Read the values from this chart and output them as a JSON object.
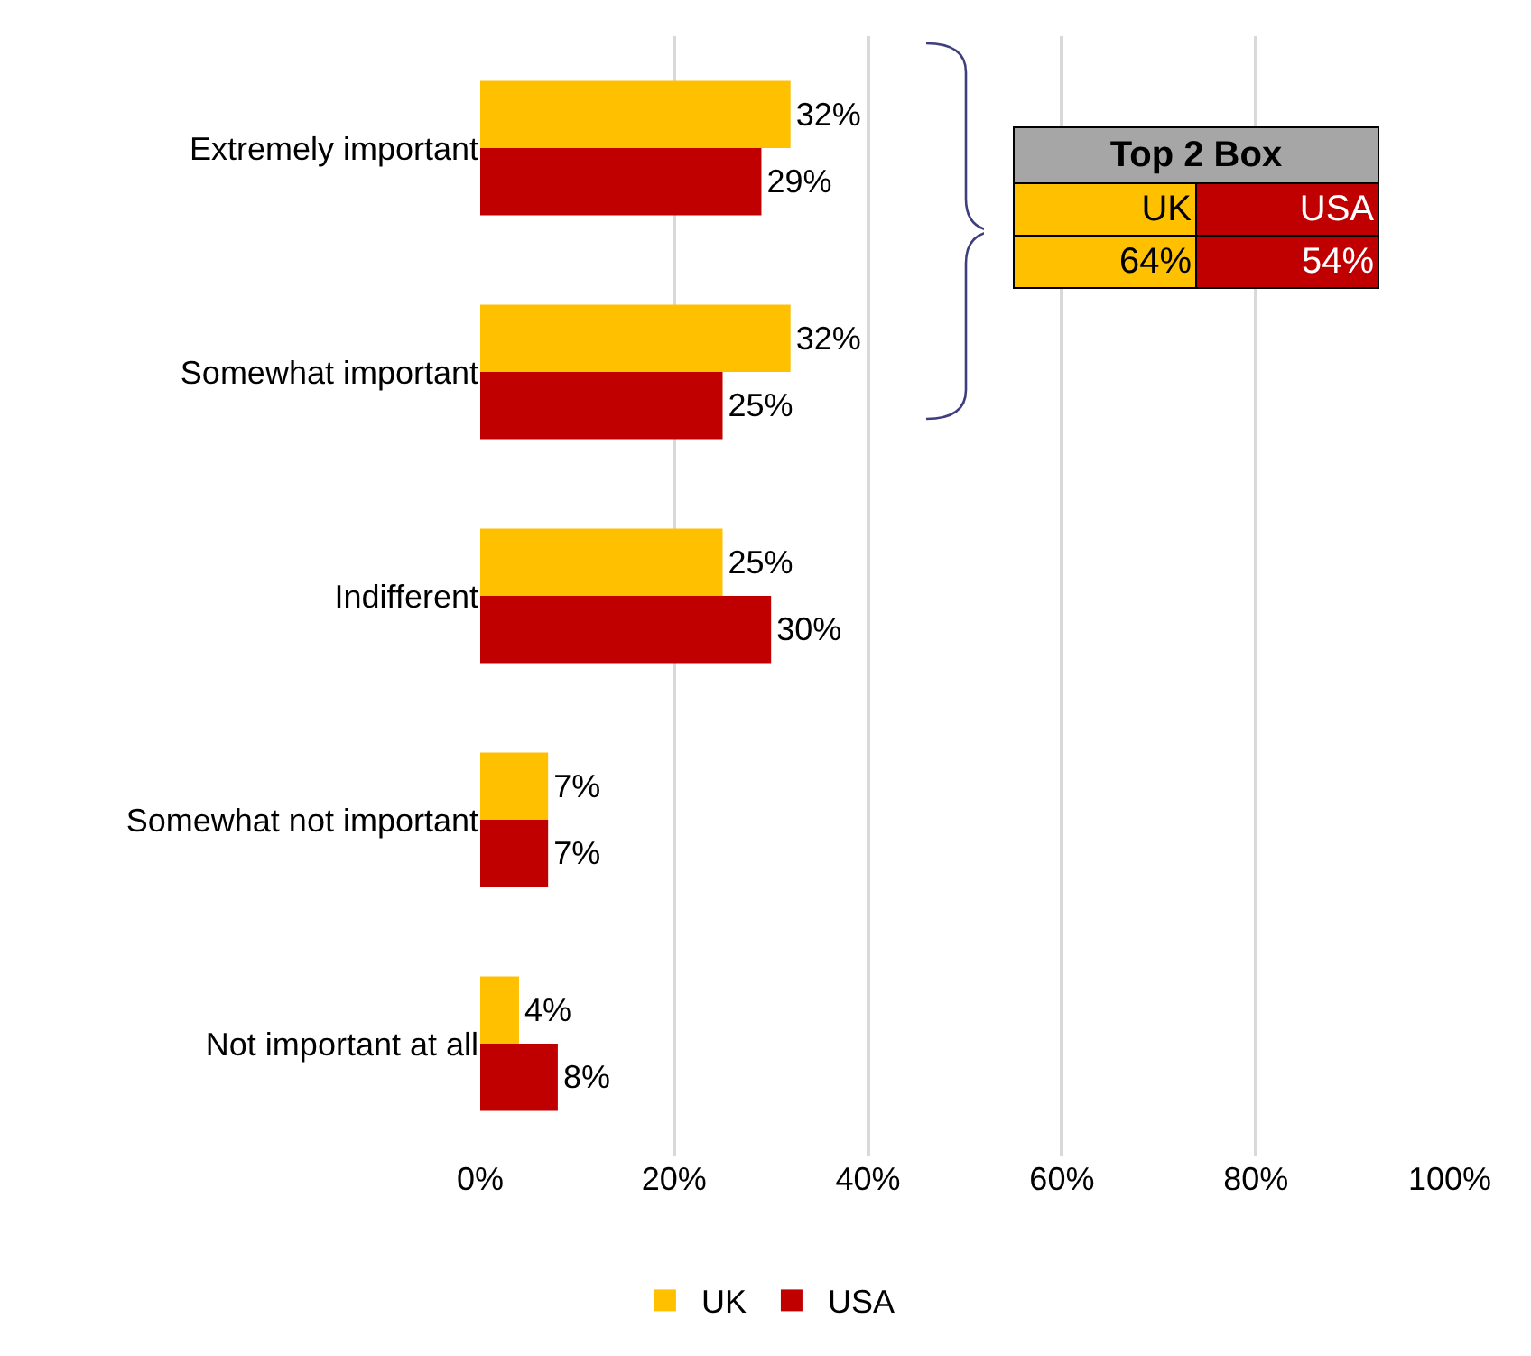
{
  "chart_data": {
    "type": "bar",
    "orientation": "horizontal",
    "categories": [
      "Extremely important",
      "Somewhat important",
      "Indifferent",
      "Somewhat not important",
      "Not important at all"
    ],
    "series": [
      {
        "name": "UK",
        "color": "#ffc000",
        "values": [
          32,
          32,
          25,
          7,
          4
        ],
        "value_labels": [
          "32%",
          "32%",
          "25%",
          "7%",
          "4%"
        ]
      },
      {
        "name": "USA",
        "color": "#c00000",
        "values": [
          29,
          25,
          30,
          7,
          8
        ],
        "value_labels": [
          "29%",
          "25%",
          "30%",
          "7%",
          "8%"
        ]
      }
    ],
    "xlim": [
      0,
      100
    ],
    "xticks": [
      {
        "value": 0,
        "label": "0%"
      },
      {
        "value": 20,
        "label": "20%"
      },
      {
        "value": 40,
        "label": "40%"
      },
      {
        "value": 60,
        "label": "60%"
      },
      {
        "value": 80,
        "label": "80%"
      },
      {
        "value": 100,
        "label": "100%"
      }
    ],
    "grid": "x",
    "legend": "bottom",
    "annotations": [
      "Top 2 Box",
      "UK",
      "USA",
      "64%",
      "54%"
    ]
  }
}
